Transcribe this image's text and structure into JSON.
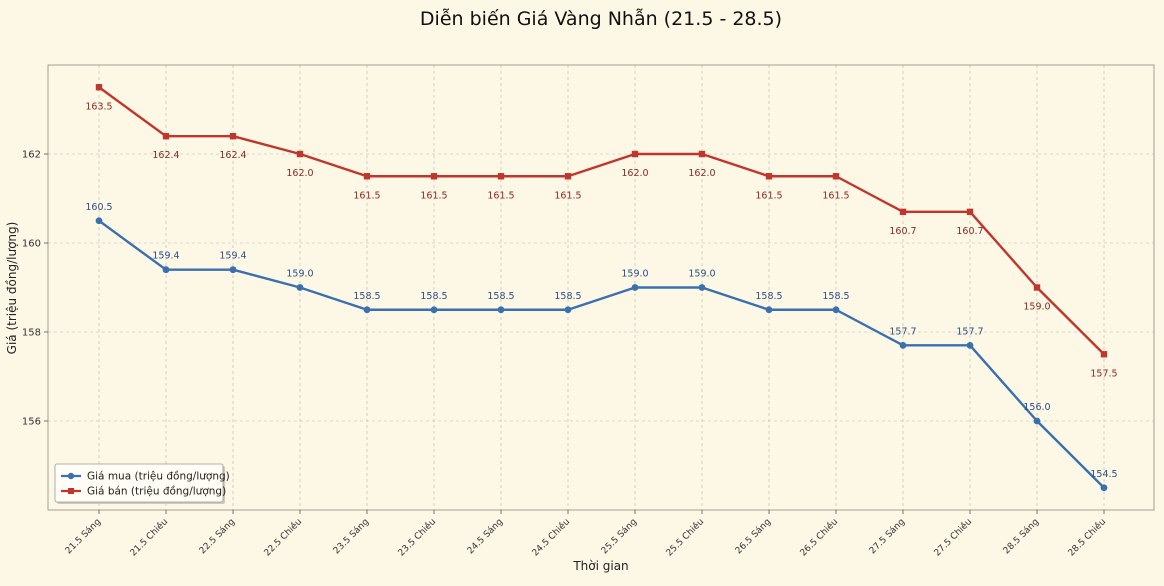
{
  "chart_data": {
    "type": "line",
    "title": "Diễn biến Giá Vàng Nhẫn (21.5 - 28.5)",
    "xlabel": "Thời gian",
    "ylabel": "Giá (triệu đồng/lượng)",
    "categories": [
      "21.5 Sáng",
      "21.5 Chiều",
      "22.5 Sáng",
      "22.5 Chiều",
      "23.5 Sáng",
      "23.5 Chiều",
      "24.5 Sáng",
      "24.5 Chiều",
      "25.5 Sáng",
      "25.5 Chiều",
      "26.5 Sáng",
      "26.5 Chiều",
      "27.5 Sáng",
      "27.5 Chiều",
      "28.5 Sáng",
      "28.5 Chiều"
    ],
    "ylim": [
      154.0,
      164.0
    ],
    "yticks": [
      156,
      158,
      160,
      162
    ],
    "grid": true,
    "legend_position": "lower-left",
    "series": [
      {
        "name": "Giá mua (triệu đồng/lượng)",
        "color": "#3a6fb0",
        "marker": "circle",
        "values": [
          160.5,
          159.4,
          159.4,
          159.0,
          158.5,
          158.5,
          158.5,
          158.5,
          159.0,
          159.0,
          158.5,
          158.5,
          157.7,
          157.7,
          156.0,
          154.5
        ],
        "labels": [
          "160.5",
          "159.4",
          "159.4",
          "159.0",
          "158.5",
          "158.5",
          "158.5",
          "158.5",
          "159.0",
          "159.0",
          "158.5",
          "158.5",
          "157.7",
          "157.7",
          "156.0",
          "154.5"
        ]
      },
      {
        "name": "Giá bán (triệu đồng/lượng)",
        "color": "#c0362c",
        "marker": "square",
        "values": [
          163.5,
          162.4,
          162.4,
          162.0,
          161.5,
          161.5,
          161.5,
          161.5,
          162.0,
          162.0,
          161.5,
          161.5,
          160.7,
          160.7,
          159.0,
          157.5
        ],
        "labels": [
          "163.5",
          "162.4",
          "162.4",
          "162.0",
          "161.5",
          "161.5",
          "161.5",
          "161.5",
          "162.0",
          "162.0",
          "161.5",
          "161.5",
          "160.7",
          "160.7",
          "159.0",
          "157.5"
        ]
      }
    ]
  }
}
